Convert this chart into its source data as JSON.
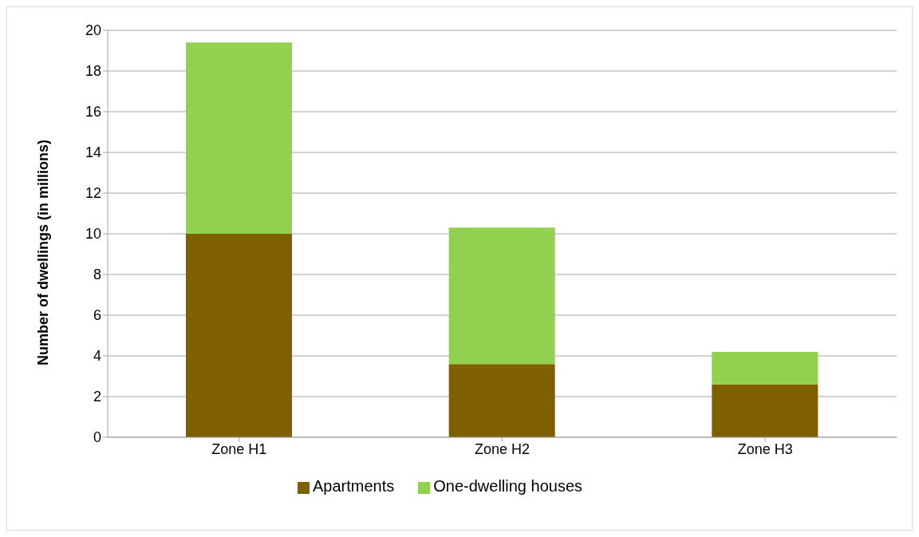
{
  "chart_data": {
    "type": "bar",
    "stacked": true,
    "ylabel": "Number of dwellings (in millions)",
    "categories": [
      "Zone H1",
      "Zone H2",
      "Zone H3"
    ],
    "series": [
      {
        "name": "Apartments",
        "color": "#7f6000",
        "values": [
          10,
          3.6,
          2.6
        ]
      },
      {
        "name": "One-dwelling houses",
        "color": "#92d050",
        "values": [
          9.4,
          6.7,
          1.6
        ]
      }
    ],
    "ylim": [
      0,
      20
    ],
    "yticks": [
      0,
      2,
      4,
      6,
      8,
      10,
      12,
      14,
      16,
      18,
      20
    ],
    "grid": "y",
    "legend": "bottom"
  }
}
